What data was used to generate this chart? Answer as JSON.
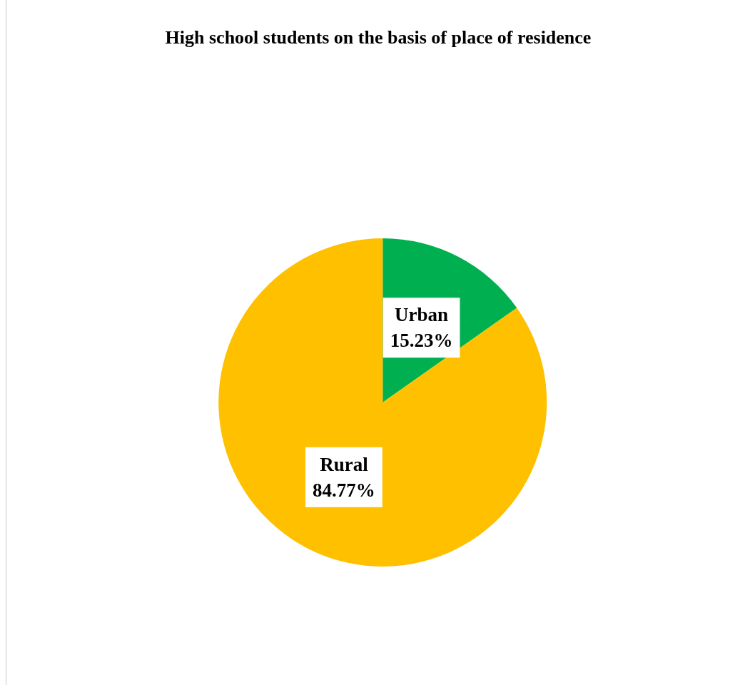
{
  "chart_data": {
    "type": "pie",
    "title": "High school students on the basis of place of residence",
    "categories": [
      "Urban",
      "Rural"
    ],
    "values": [
      15.23,
      84.77
    ],
    "value_labels": [
      "15.23%",
      "84.77%"
    ],
    "colors": [
      "#00b050",
      "#ffc000"
    ],
    "legend": false
  }
}
